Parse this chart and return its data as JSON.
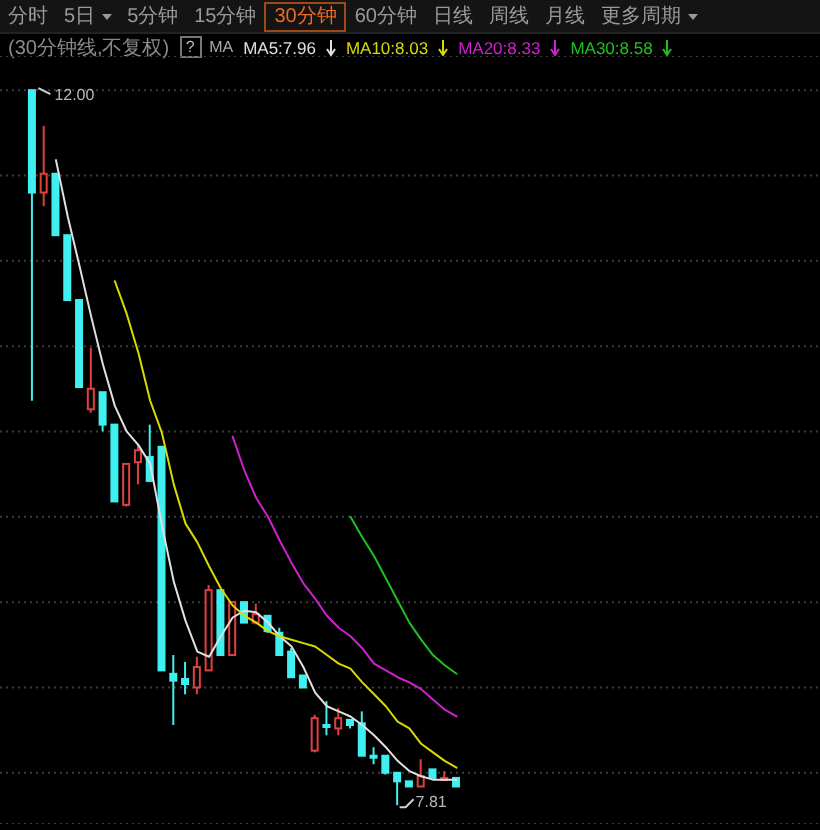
{
  "chart_data": {
    "type": "candlestick",
    "subtitle": "(30分钟线,不复权)",
    "legend_title": "MA",
    "annotations": [
      "分时",
      "5日",
      "5分钟",
      "15分钟",
      "30分钟",
      "60分钟",
      "日线",
      "周线",
      "月线",
      "更多周期",
      "?",
      "12.00",
      "7.81"
    ],
    "categories": [
      null,
      null,
      null,
      null,
      null,
      null,
      null,
      null,
      null,
      null,
      null,
      null,
      null,
      null,
      null,
      null,
      null,
      null,
      null,
      null,
      null,
      null,
      null,
      null,
      null,
      null,
      null,
      null,
      null,
      null,
      null,
      null,
      null,
      null,
      null,
      null,
      null
    ],
    "ohlc": [
      [
        12.0,
        12.0,
        10.18,
        11.4
      ],
      [
        11.4,
        11.79,
        11.32,
        11.51
      ],
      [
        11.51,
        11.51,
        11.15,
        11.15
      ],
      [
        11.15,
        11.15,
        10.77,
        10.77
      ],
      [
        10.77,
        10.77,
        10.26,
        10.26
      ],
      [
        10.13,
        10.49,
        10.11,
        10.25
      ],
      [
        10.23,
        10.23,
        10.0,
        10.04
      ],
      [
        10.04,
        10.04,
        9.59,
        9.59
      ],
      [
        9.57,
        9.81,
        9.56,
        9.81
      ],
      [
        9.82,
        9.93,
        9.69,
        9.89
      ],
      [
        9.85,
        10.04,
        9.71,
        9.71
      ],
      [
        9.91,
        9.91,
        8.6,
        8.6
      ],
      [
        8.58,
        8.69,
        8.28,
        8.54
      ],
      [
        8.55,
        8.65,
        8.46,
        8.52
      ],
      [
        8.5,
        8.68,
        8.46,
        8.62
      ],
      [
        8.6,
        9.1,
        8.6,
        9.07
      ],
      [
        9.07,
        9.07,
        8.69,
        8.69
      ],
      [
        8.69,
        9.0,
        8.69,
        9.0
      ],
      [
        9.0,
        9.0,
        8.88,
        8.88
      ],
      [
        8.88,
        8.99,
        8.87,
        8.93
      ],
      [
        8.92,
        8.92,
        8.82,
        8.83
      ],
      [
        8.82,
        8.85,
        8.69,
        8.69
      ],
      [
        8.71,
        8.73,
        8.56,
        8.56
      ],
      [
        8.57,
        8.57,
        8.5,
        8.5
      ],
      [
        8.13,
        8.34,
        8.12,
        8.32
      ],
      [
        8.28,
        8.42,
        8.22,
        8.27
      ],
      [
        8.26,
        8.38,
        8.22,
        8.32
      ],
      [
        8.31,
        8.31,
        8.26,
        8.28
      ],
      [
        8.29,
        8.36,
        8.1,
        8.1
      ],
      [
        8.1,
        8.15,
        8.05,
        8.09
      ],
      [
        8.1,
        8.1,
        7.99,
        8.0
      ],
      [
        8.0,
        8.0,
        7.81,
        7.95
      ],
      [
        7.95,
        7.95,
        7.92,
        7.92
      ],
      [
        7.92,
        8.08,
        7.92,
        7.98
      ],
      [
        8.02,
        8.02,
        7.97,
        7.97
      ],
      [
        7.96,
        8.01,
        7.96,
        7.97
      ],
      [
        7.97,
        7.97,
        7.92,
        7.92
      ]
    ],
    "colors": [
      "#40f0f0",
      "#e04040",
      "#40f0f0",
      "#40f0f0",
      "#40f0f0",
      "#e04040",
      "#40f0f0",
      "#40f0f0",
      "#e04040",
      "#e04040",
      "#40f0f0",
      "#40f0f0",
      "#40f0f0",
      "#40f0f0",
      "#e04040",
      "#e04040",
      "#40f0f0",
      "#e04040",
      "#40f0f0",
      "#e04040",
      "#40f0f0",
      "#40f0f0",
      "#40f0f0",
      "#40f0f0",
      "#e04040",
      "#40f0f0",
      "#e04040",
      "#40f0f0",
      "#40f0f0",
      "#40f0f0",
      "#40f0f0",
      "#40f0f0",
      "#40f0f0",
      "#e04040",
      "#40f0f0",
      "#e04040",
      "#40f0f0"
    ],
    "series": [
      {
        "name": "MA5:7.96",
        "type": "line",
        "color": "#e0e0e0",
        "values": [
          null,
          null,
          11.59,
          11.26,
          10.97,
          10.67,
          10.39,
          10.15,
          10.0,
          9.92,
          9.81,
          9.45,
          9.12,
          8.89,
          8.71,
          8.68,
          8.8,
          8.91,
          8.95,
          8.94,
          8.88,
          8.8,
          8.74,
          8.62,
          8.47,
          8.39,
          8.36,
          8.33,
          8.28,
          8.22,
          8.15,
          8.07,
          8.01,
          7.98,
          7.96,
          7.96,
          7.96
        ]
      },
      {
        "name": "MA10:8.03",
        "type": "line",
        "color": "#dada00",
        "values": [
          null,
          null,
          null,
          null,
          null,
          null,
          null,
          10.88,
          10.69,
          10.46,
          10.18,
          9.99,
          9.69,
          9.46,
          9.35,
          9.21,
          9.08,
          8.98,
          8.92,
          8.88,
          8.83,
          8.8,
          8.78,
          8.76,
          8.74,
          8.69,
          8.64,
          8.61,
          8.53,
          8.46,
          8.39,
          8.3,
          8.26,
          8.17,
          8.12,
          8.07,
          8.03
        ]
      },
      {
        "name": "MA20:8.33",
        "type": "line",
        "color": "#d020d0",
        "values": [
          null,
          null,
          null,
          null,
          null,
          null,
          null,
          null,
          null,
          null,
          null,
          null,
          null,
          null,
          null,
          null,
          null,
          9.97,
          9.77,
          9.61,
          9.5,
          9.36,
          9.23,
          9.11,
          9.02,
          8.92,
          8.85,
          8.8,
          8.73,
          8.64,
          8.6,
          8.56,
          8.53,
          8.49,
          8.43,
          8.37,
          8.33
        ]
      },
      {
        "name": "MA30:8.58",
        "type": "line",
        "color": "#20c020",
        "values": [
          null,
          null,
          null,
          null,
          null,
          null,
          null,
          null,
          null,
          null,
          null,
          null,
          null,
          null,
          null,
          null,
          null,
          null,
          null,
          null,
          null,
          null,
          null,
          null,
          null,
          null,
          null,
          9.5,
          9.38,
          9.27,
          9.14,
          9.01,
          8.88,
          8.78,
          8.69,
          8.63,
          8.58
        ]
      }
    ],
    "ylim": [
      7.7,
      12.2
    ],
    "yticks": [
      {
        "value": 8.0,
        "label": null
      },
      {
        "value": 8.5,
        "label": null
      },
      {
        "value": 9.0,
        "label": null
      },
      {
        "value": 9.5,
        "label": null
      },
      {
        "value": 10.0,
        "label": null
      },
      {
        "value": 10.5,
        "label": null
      },
      {
        "value": 11.0,
        "label": null
      },
      {
        "value": 11.5,
        "label": null
      },
      {
        "value": 12.0,
        "label": null
      }
    ],
    "grid": "y",
    "tick_labels": false,
    "legend": "top",
    "marker": "none",
    "line_style": "solid"
  }
}
